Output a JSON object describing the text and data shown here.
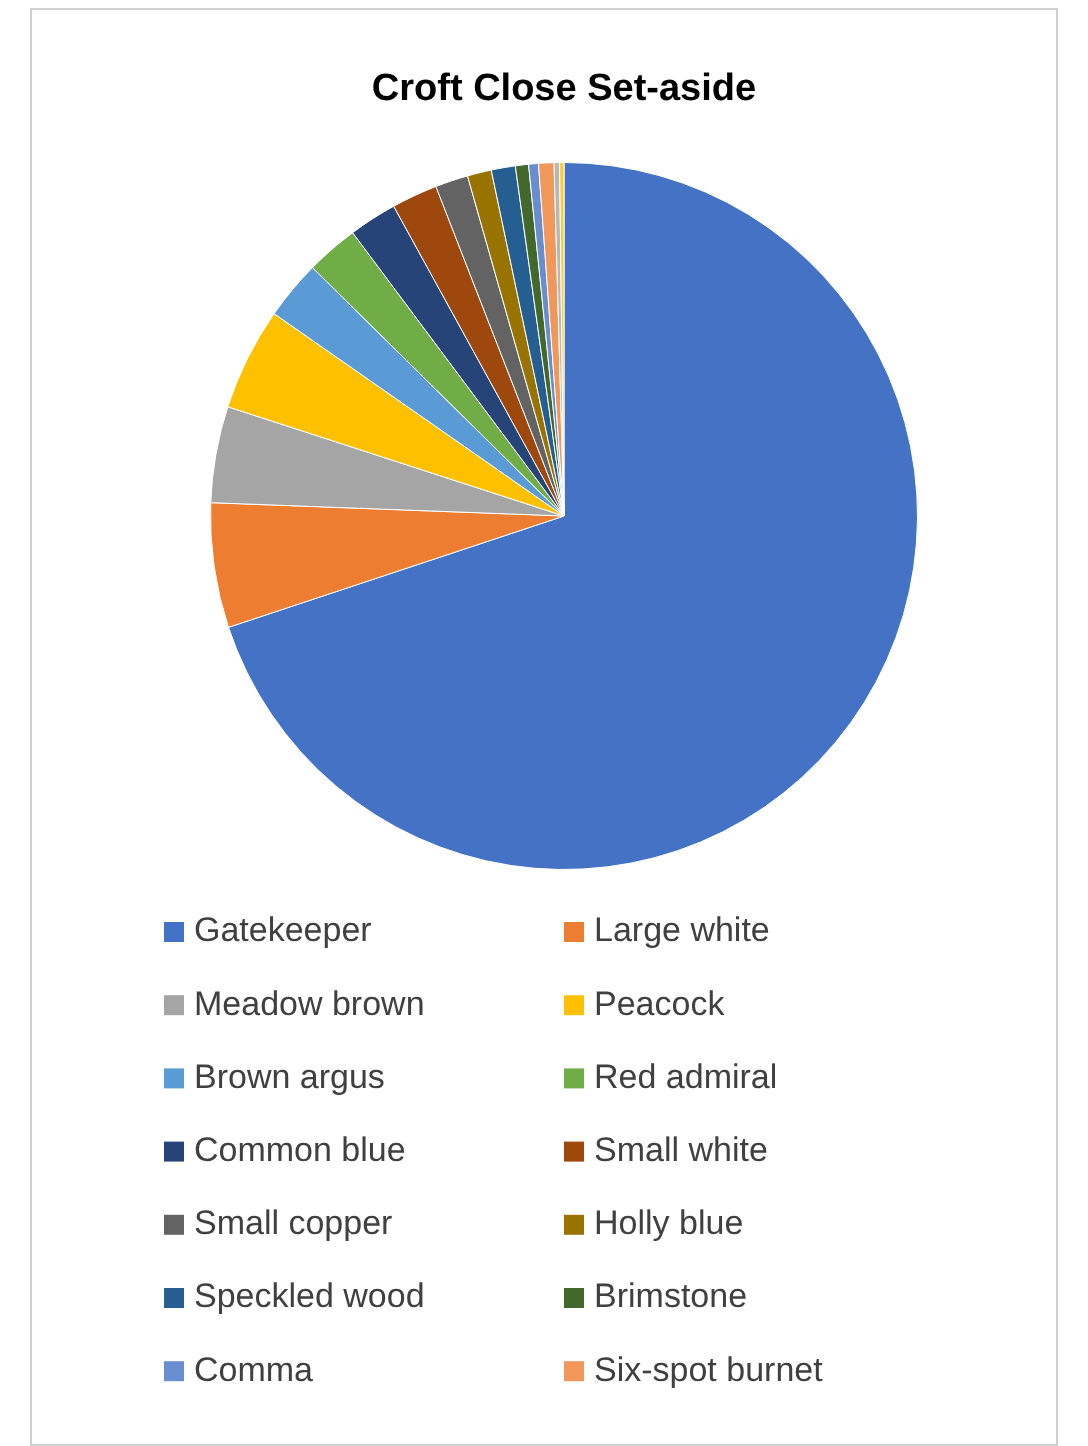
{
  "chart_data": {
    "type": "pie",
    "title": "Croft Close Set-aside",
    "categories": [
      "Gatekeeper",
      "Large white",
      "Meadow brown",
      "Peacock",
      "Brown argus",
      "Red admiral",
      "Common blue",
      "Small white",
      "Small copper",
      "Holly blue",
      "Speckled wood",
      "Brimstone",
      "Comma",
      "Six-spot burnet",
      null,
      null
    ],
    "values": [
      69.9,
      5.7,
      4.4,
      4.7,
      2.7,
      2.4,
      2.2,
      2.1,
      1.5,
      1.1,
      1.1,
      0.6,
      0.45,
      0.7,
      0.25,
      0.2
    ],
    "colors": [
      "#4472c4",
      "#ed7d31",
      "#a5a5a5",
      "#ffc000",
      "#5b9bd5",
      "#70ad47",
      "#264478",
      "#9e480e",
      "#636363",
      "#997300",
      "#255e91",
      "#43682b",
      "#698ed0",
      "#f1975a",
      "#b7b7b7",
      "#ffcd33"
    ],
    "legend": "bottom"
  }
}
